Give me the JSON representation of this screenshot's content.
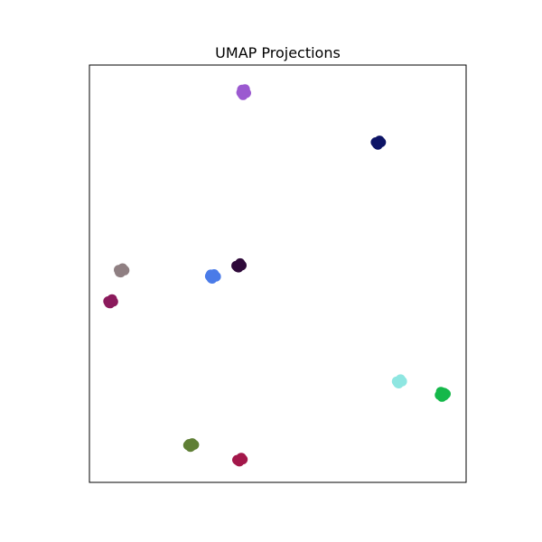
{
  "chart_data": {
    "type": "scatter",
    "title": "UMAP Projections",
    "xlabel": "",
    "ylabel": "",
    "xlim": [
      0,
      100
    ],
    "ylim": [
      0,
      100
    ],
    "axes_ticks": false,
    "grid": false,
    "legend": false,
    "series": [
      {
        "color": "#9b59d0",
        "points": [
          [
            40.3,
            93.4
          ],
          [
            41.2,
            94.0
          ],
          [
            40.8,
            92.8
          ],
          [
            41.6,
            93.3
          ],
          [
            41.3,
            94.2
          ],
          [
            40.5,
            94.1
          ],
          [
            41.0,
            93.6
          ],
          [
            40.6,
            93.0
          ]
        ]
      },
      {
        "color": "#0d1466",
        "points": [
          [
            76.0,
            81.5
          ],
          [
            77.0,
            81.9
          ],
          [
            76.6,
            80.9
          ],
          [
            77.4,
            81.5
          ],
          [
            76.3,
            81.1
          ],
          [
            76.8,
            81.7
          ]
        ]
      },
      {
        "color": "#8f7f82",
        "points": [
          [
            7.8,
            50.9
          ],
          [
            8.8,
            51.3
          ],
          [
            8.3,
            50.3
          ],
          [
            9.3,
            50.8
          ],
          [
            8.0,
            50.4
          ],
          [
            8.6,
            51.1
          ]
        ]
      },
      {
        "color": "#4a7be8",
        "points": [
          [
            32.0,
            49.4
          ],
          [
            33.1,
            49.9
          ],
          [
            32.6,
            48.8
          ],
          [
            33.6,
            49.3
          ],
          [
            32.4,
            48.9
          ],
          [
            33.0,
            49.6
          ],
          [
            32.2,
            49.8
          ]
        ]
      },
      {
        "color": "#2f0a3a",
        "points": [
          [
            39.0,
            51.9
          ],
          [
            40.0,
            52.5
          ],
          [
            39.6,
            51.5
          ],
          [
            40.4,
            52.0
          ],
          [
            39.3,
            51.6
          ],
          [
            39.8,
            52.3
          ]
        ]
      },
      {
        "color": "#8b1a5c",
        "points": [
          [
            5.0,
            43.4
          ],
          [
            6.0,
            43.9
          ],
          [
            5.5,
            42.9
          ],
          [
            6.3,
            43.3
          ],
          [
            5.2,
            43.0
          ],
          [
            5.8,
            43.7
          ]
        ]
      },
      {
        "color": "#8ee6e1",
        "points": [
          [
            81.6,
            24.2
          ],
          [
            82.6,
            24.7
          ],
          [
            82.1,
            23.7
          ],
          [
            83.0,
            24.2
          ],
          [
            81.9,
            23.8
          ],
          [
            82.5,
            24.5
          ]
        ]
      },
      {
        "color": "#15b84a",
        "points": [
          [
            93.0,
            20.9
          ],
          [
            94.1,
            21.5
          ],
          [
            93.6,
            20.5
          ],
          [
            94.6,
            21.2
          ],
          [
            93.3,
            21.7
          ],
          [
            94.2,
            20.8
          ],
          [
            93.8,
            21.3
          ]
        ]
      },
      {
        "color": "#5f7f35",
        "points": [
          [
            26.2,
            8.9
          ],
          [
            27.3,
            9.4
          ],
          [
            26.8,
            8.5
          ],
          [
            27.8,
            9.0
          ],
          [
            26.5,
            9.2
          ],
          [
            27.1,
            8.7
          ]
        ]
      },
      {
        "color": "#a3174a",
        "points": [
          [
            39.2,
            5.4
          ],
          [
            40.3,
            5.9
          ],
          [
            39.8,
            5.0
          ],
          [
            40.7,
            5.5
          ],
          [
            39.5,
            5.2
          ],
          [
            40.1,
            5.7
          ]
        ]
      }
    ]
  }
}
